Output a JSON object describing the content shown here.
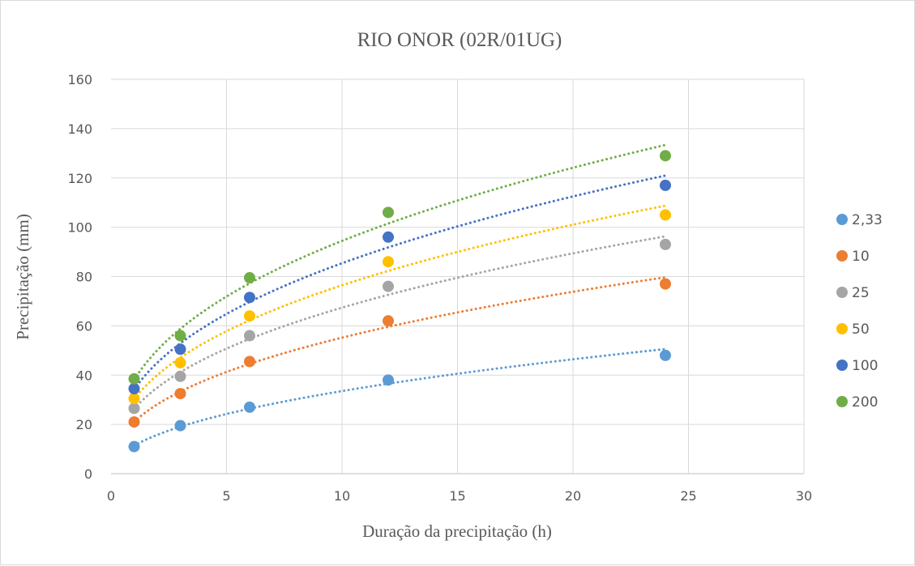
{
  "chart_data": {
    "type": "scatter",
    "title": "RIO ONOR (02R/01UG)",
    "xlabel": "Duração da precipitação (h)",
    "ylabel": "Precipitação (mm)",
    "xlim": [
      0,
      30
    ],
    "ylim": [
      0,
      160
    ],
    "x_ticks": [
      "0",
      "5",
      "10",
      "15",
      "20",
      "25",
      "30"
    ],
    "y_ticks": [
      "0",
      "20",
      "40",
      "60",
      "80",
      "100",
      "120",
      "140",
      "160"
    ],
    "grid": true,
    "legend_position": "right",
    "trendline": "power",
    "x": [
      1,
      3,
      6,
      12,
      24
    ],
    "series": [
      {
        "name": "2,33",
        "color": "#5B9BD5",
        "values": [
          11,
          19.5,
          27,
          38,
          48
        ]
      },
      {
        "name": "10",
        "color": "#ED7D31",
        "values": [
          21,
          32.5,
          45.5,
          62,
          77
        ]
      },
      {
        "name": "25",
        "color": "#A5A5A5",
        "values": [
          26.5,
          39.5,
          56,
          76,
          93
        ]
      },
      {
        "name": "50",
        "color": "#FFC000",
        "values": [
          30.5,
          45,
          64,
          86,
          105
        ]
      },
      {
        "name": "100",
        "color": "#4472C4",
        "values": [
          34.5,
          50.5,
          71.5,
          96,
          117
        ]
      },
      {
        "name": "200",
        "color": "#70AD47",
        "values": [
          38.5,
          56,
          79.5,
          106,
          129
        ]
      }
    ]
  }
}
